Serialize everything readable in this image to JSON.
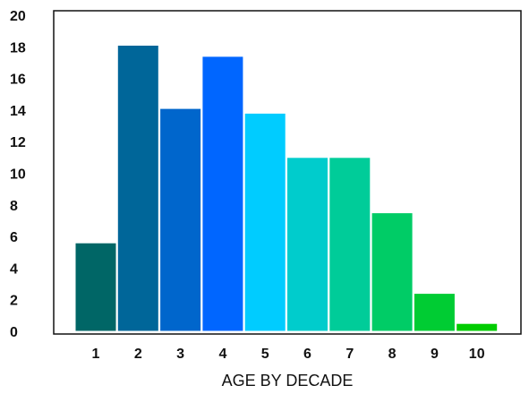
{
  "chart_data": {
    "type": "bar",
    "title": "",
    "xlabel": "AGE BY DECADE",
    "ylabel": "",
    "categories": [
      "1",
      "2",
      "3",
      "4",
      "5",
      "6",
      "7",
      "8",
      "9",
      "10"
    ],
    "values": [
      5.6,
      18.1,
      14.1,
      17.4,
      13.8,
      11.0,
      11.0,
      7.5,
      2.4,
      0.5
    ],
    "colors": [
      "#006666",
      "#006699",
      "#0066cc",
      "#0066ff",
      "#00ccff",
      "#00cccc",
      "#00cc99",
      "#00cc66",
      "#00cc33",
      "#00cc00"
    ],
    "ylim": [
      0,
      20
    ],
    "yticks": [
      "0",
      "2",
      "4",
      "6",
      "8",
      "10",
      "12",
      "14",
      "16",
      "18",
      "20"
    ],
    "grid": false,
    "legend": "none"
  }
}
